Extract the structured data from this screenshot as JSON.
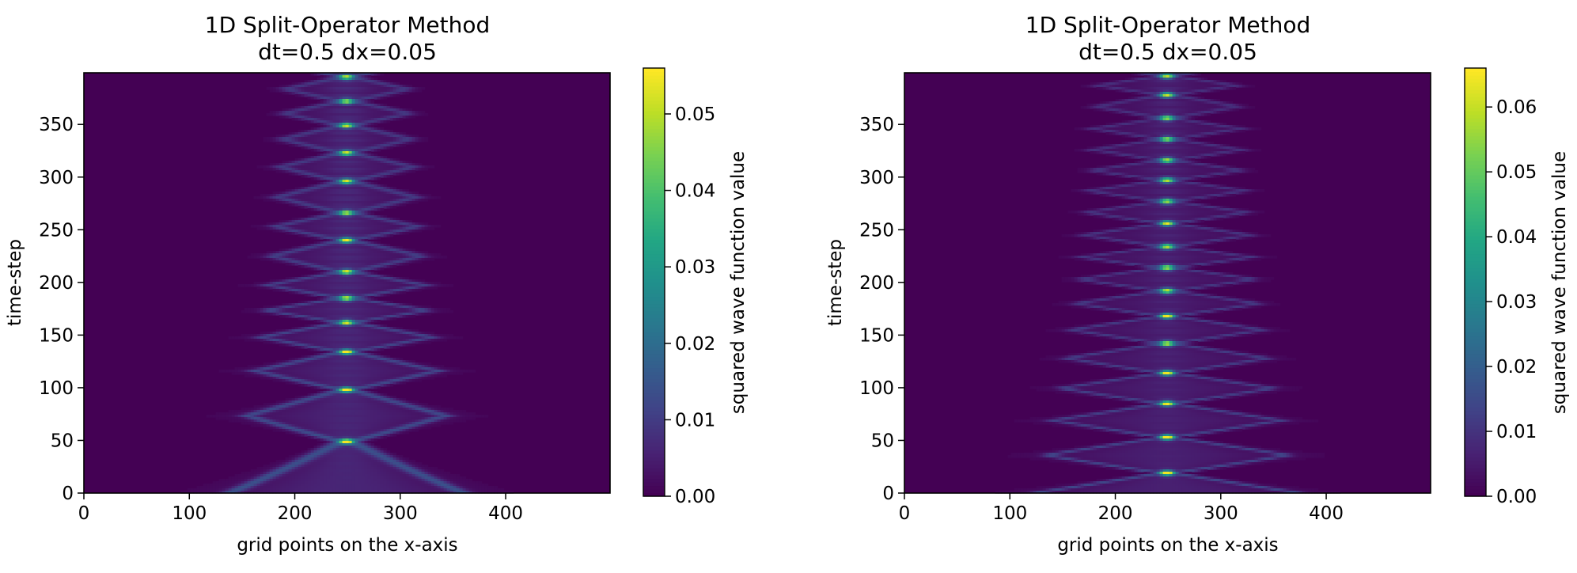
{
  "figure": {
    "background": "#ffffff"
  },
  "chart_data": [
    {
      "type": "heatmap",
      "title": "1D Split-Operator Method",
      "subtitle": "dt=0.5 dx=0.05",
      "xlabel": "grid points on the x-axis",
      "ylabel": "time-step",
      "xlim": [
        0,
        499
      ],
      "ylim": [
        0,
        399
      ],
      "xticks": [
        0,
        100,
        200,
        300,
        400
      ],
      "yticks": [
        0,
        50,
        100,
        150,
        200,
        250,
        300,
        350
      ],
      "colorbar": {
        "label": "squared wave function value",
        "min": 0.0,
        "max": 0.056,
        "ticks": [
          0.0,
          0.01,
          0.02,
          0.03,
          0.04,
          0.05
        ],
        "tick_labels": [
          "0.00",
          "0.01",
          "0.02",
          "0.03",
          "0.04",
          "0.05"
        ]
      },
      "colormap": "viridis",
      "pattern": {
        "center_x": 249,
        "initial_halfwidth": 105,
        "focus_timesteps": [
          49,
          98,
          134,
          162,
          185,
          210,
          240,
          266,
          296,
          323,
          349,
          372,
          395
        ],
        "peak_value": 0.055
      }
    },
    {
      "type": "heatmap",
      "title": "1D Split-Operator Method",
      "subtitle": "dt=0.5 dx=0.05",
      "xlabel": "grid points on the x-axis",
      "ylabel": "time-step",
      "xlim": [
        0,
        499
      ],
      "ylim": [
        0,
        399
      ],
      "xticks": [
        0,
        100,
        200,
        300,
        400
      ],
      "yticks": [
        0,
        50,
        100,
        150,
        200,
        250,
        300,
        350
      ],
      "colorbar": {
        "label": "squared wave function value",
        "min": 0.0,
        "max": 0.066,
        "ticks": [
          0.0,
          0.01,
          0.02,
          0.03,
          0.04,
          0.05,
          0.06
        ],
        "tick_labels": [
          "0.00",
          "0.01",
          "0.02",
          "0.03",
          "0.04",
          "0.05",
          "0.06"
        ]
      },
      "colormap": "viridis",
      "pattern": {
        "center_x": 249,
        "initial_halfwidth": 120,
        "focus_timesteps": [
          19,
          53,
          85,
          114,
          142,
          168,
          192,
          214,
          234,
          256,
          277,
          297,
          316,
          336,
          356,
          378,
          396
        ],
        "peak_value": 0.065
      }
    }
  ]
}
